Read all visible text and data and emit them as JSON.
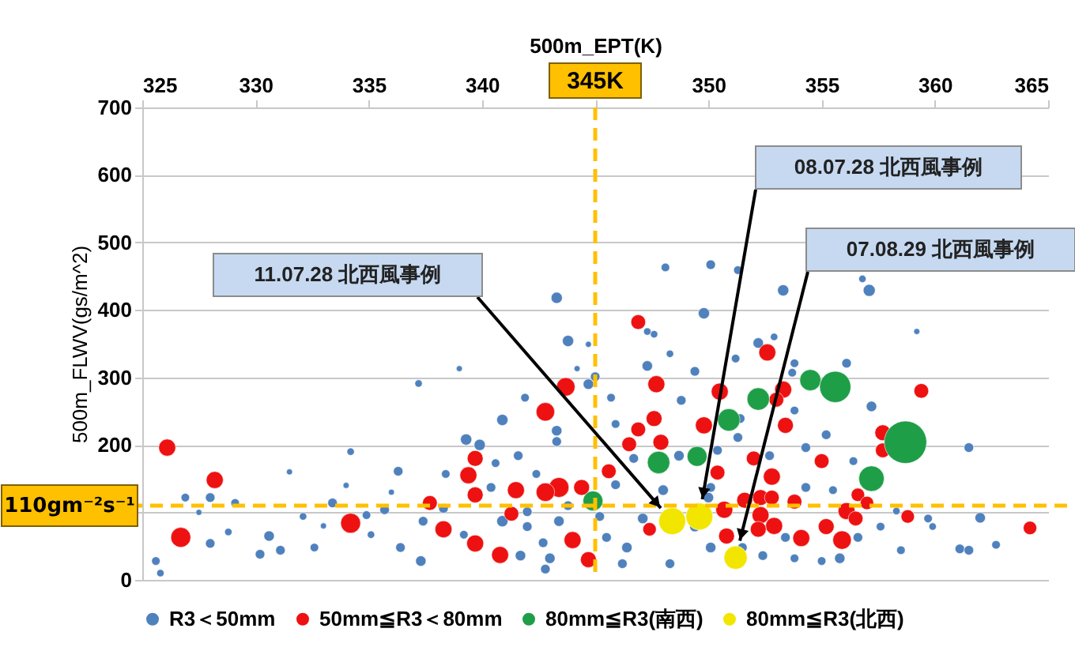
{
  "chart_data": {
    "type": "bubble",
    "xlabel": "500m_EPT(K)",
    "ylabel": "500m_FLWV(gs/m^2)",
    "xlim": [
      325,
      365
    ],
    "xticks": [
      325,
      330,
      335,
      340,
      {
        "value": 345,
        "label": null
      },
      350,
      355,
      360,
      365
    ],
    "ylim": [
      0,
      700
    ],
    "yticks": [
      0,
      {
        "value": 100,
        "label": null
      },
      200,
      300,
      400,
      500,
      600,
      700
    ],
    "grid": "y",
    "legend": "bottom",
    "marker": "circle",
    "ref_lines": [
      {
        "axis": "x",
        "value": 345,
        "label": "345K",
        "color": "#ffc000",
        "line_style": "dashed"
      },
      {
        "axis": "y",
        "value": 110,
        "label": "110gm⁻²s⁻¹",
        "color": "#ffc000",
        "line_style": "dashed"
      }
    ],
    "annotations": [
      "11.07.28 北西風事例",
      "08.07.28 北西風事例",
      "07.08.29 北西風事例"
    ],
    "series": [
      {
        "name": "R3＜50mm",
        "color": "#4f81bd",
        "x": [
          343.3,
          343.8,
          344.7,
          348.1,
          350.1,
          351.3,
          349.8,
          353.3,
          356.8,
          357.1,
          359.2,
          352.2,
          347.6,
          344.7,
          341.9,
          340.9,
          339.3,
          339.9,
          343.3,
          337.2,
          334.2,
          336.3,
          330.6,
          330.2,
          328.0,
          328.0,
          326.9,
          325.6,
          325.8,
          329.1,
          328.8,
          331.1,
          332.1,
          332.6,
          333.4,
          334.9,
          335.7,
          335.1,
          336.4,
          337.3,
          337.4,
          338.4,
          338.3,
          339.2,
          340.4,
          340.9,
          341.7,
          342.0,
          342.8,
          343.0,
          343.4,
          342.7,
          342.0,
          343.8,
          342.4,
          341.6,
          343.3,
          340.6,
          339.0,
          344.2,
          347.3,
          349.4,
          348.3,
          356.1,
          357.2,
          361.5,
          353.8,
          351.2,
          345.7,
          348.8,
          353.8,
          355.2,
          351.3,
          354.3,
          356.4,
          352.7,
          346.7,
          348.7,
          345.9,
          348.0,
          350.1,
          354.3,
          355.5,
          358.3,
          359.7,
          362.0,
          361.1,
          361.5,
          362.7,
          345.5,
          346.4,
          346.2,
          348.3,
          350.1,
          349.4,
          353.4,
          355.0,
          355.8,
          356.6,
          357.6,
          358.5,
          359.9,
          345.2,
          347.1,
          351.5,
          352.4,
          353.8,
          347.3,
          352.9,
          353.7,
          351.4,
          350.4,
          350.0,
          345.9,
          345.0,
          327.5,
          331.5,
          333.0,
          334.0,
          336.0
        ],
        "values": [
          418,
          354,
          349,
          463,
          467,
          459,
          395,
          429,
          446,
          429,
          368,
          351,
          364,
          290,
          270,
          237,
          208,
          200,
          221,
          291,
          190,
          161,
          65,
          38,
          54,
          122,
          122,
          28,
          10,
          114,
          71,
          44,
          94,
          48,
          114,
          96,
          104,
          67,
          48,
          28,
          87,
          157,
          106,
          67,
          137,
          87,
          36,
          79,
          16,
          32,
          87,
          55,
          101,
          110,
          157,
          184,
          205,
          173,
          313,
          313,
          317,
          309,
          335,
          321,
          257,
          196,
          321,
          328,
          270,
          266,
          251,
          215,
          211,
          196,
          176,
          184,
          180,
          184,
          141,
          133,
          137,
          137,
          133,
          102,
          91,
          92,
          46,
          44,
          52,
          63,
          48,
          24,
          24,
          48,
          79,
          63,
          28,
          32,
          63,
          79,
          44,
          79,
          94,
          91,
          48,
          36,
          32,
          368,
          360,
          307,
          239,
          192,
          122,
          231,
          301,
          100,
          160,
          80,
          140,
          130
        ],
        "sizes": [
          0.07,
          0.07,
          0.02,
          0.04,
          0.05,
          0.04,
          0.07,
          0.07,
          0.03,
          0.08,
          0.02,
          0.06,
          0.03,
          0.06,
          0.04,
          0.07,
          0.07,
          0.07,
          0.06,
          0.03,
          0.03,
          0.05,
          0.06,
          0.05,
          0.05,
          0.05,
          0.04,
          0.04,
          0.03,
          0.04,
          0.03,
          0.05,
          0.03,
          0.04,
          0.05,
          0.04,
          0.05,
          0.03,
          0.05,
          0.06,
          0.05,
          0.04,
          0.05,
          0.04,
          0.05,
          0.07,
          0.06,
          0.05,
          0.05,
          0.06,
          0.06,
          0.05,
          0.05,
          0.05,
          0.04,
          0.05,
          0.05,
          0.04,
          0.02,
          0.02,
          0.06,
          0.05,
          0.03,
          0.05,
          0.06,
          0.05,
          0.04,
          0.04,
          0.04,
          0.05,
          0.04,
          0.05,
          0.05,
          0.05,
          0.04,
          0.05,
          0.05,
          0.06,
          0.05,
          0.06,
          0.05,
          0.05,
          0.04,
          0.03,
          0.04,
          0.06,
          0.05,
          0.05,
          0.04,
          0.05,
          0.06,
          0.05,
          0.05,
          0.06,
          0.06,
          0.05,
          0.04,
          0.06,
          0.05,
          0.04,
          0.04,
          0.03,
          0.05,
          0.06,
          0.05,
          0.05,
          0.04,
          0.03,
          0.03,
          0.04,
          0.05,
          0.05,
          0.06,
          0.04,
          0.05,
          0.02,
          0.02,
          0.02,
          0.02,
          0.02
        ]
      },
      {
        "name": "50mm≦R3＜80mm",
        "color": "#ee1111",
        "x": [
          326.1,
          328.2,
          326.7,
          334.2,
          337.7,
          338.3,
          339.7,
          339.4,
          339.7,
          339.7,
          340.8,
          341.5,
          341.3,
          342.8,
          343.7,
          343.4,
          342.8,
          344.4,
          344.0,
          344.7,
          346.9,
          352.6,
          347.7,
          350.5,
          353.3,
          353.0,
          347.6,
          346.9,
          349.8,
          346.5,
          347.9,
          353.4,
          345.6,
          350.4,
          352.0,
          355.0,
          352.8,
          357.7,
          357.7,
          359.4,
          350.7,
          351.6,
          352.3,
          352.8,
          353.8,
          352.3,
          352.9,
          352.2,
          350.8,
          354.1,
          355.2,
          355.9,
          356.1,
          356.5,
          356.6,
          357.0,
          358.8,
          364.2,
          347.4
        ],
        "values": [
          196,
          148,
          63,
          84,
          114,
          75,
          180,
          155,
          126,
          54,
          37,
          133,
          98,
          249,
          286,
          137,
          130,
          137,
          59,
          30,
          382,
          337,
          290,
          279,
          282,
          267,
          239,
          223,
          229,
          201,
          204,
          229,
          161,
          159,
          180,
          176,
          153,
          218,
          192,
          280,
          104,
          118,
          122,
          122,
          116,
          96,
          80,
          75,
          65,
          62,
          79,
          59,
          102,
          91,
          126,
          114,
          94,
          77,
          75
        ],
        "sizes": [
          0.16,
          0.16,
          0.22,
          0.22,
          0.12,
          0.16,
          0.14,
          0.16,
          0.14,
          0.16,
          0.16,
          0.16,
          0.12,
          0.19,
          0.19,
          0.22,
          0.19,
          0.14,
          0.16,
          0.14,
          0.12,
          0.16,
          0.16,
          0.16,
          0.16,
          0.12,
          0.14,
          0.12,
          0.16,
          0.12,
          0.14,
          0.14,
          0.12,
          0.12,
          0.12,
          0.12,
          0.16,
          0.14,
          0.12,
          0.12,
          0.16,
          0.14,
          0.14,
          0.12,
          0.12,
          0.16,
          0.16,
          0.14,
          0.14,
          0.16,
          0.14,
          0.19,
          0.16,
          0.12,
          0.1,
          0.1,
          0.1,
          0.1,
          0.1
        ]
      },
      {
        "name": "80mm≦R3(南西)",
        "color": "#1f9e48",
        "x": [
          344.9,
          347.8,
          349.5,
          350.9,
          352.2,
          354.5,
          355.6,
          358.7,
          357.2
        ],
        "values": [
          117,
          174,
          183,
          237,
          268,
          296,
          286,
          204,
          150
        ],
        "sizes": [
          0.22,
          0.28,
          0.22,
          0.28,
          0.28,
          0.25,
          0.54,
          1,
          0.36
        ]
      },
      {
        "name": "80mm≦R3(北西)",
        "color": "#f2e600",
        "x": [
          348.4,
          349.6,
          351.2
        ],
        "values": [
          87,
          94,
          33
        ],
        "sizes": [
          0.4,
          0.4,
          0.3
        ]
      }
    ]
  }
}
